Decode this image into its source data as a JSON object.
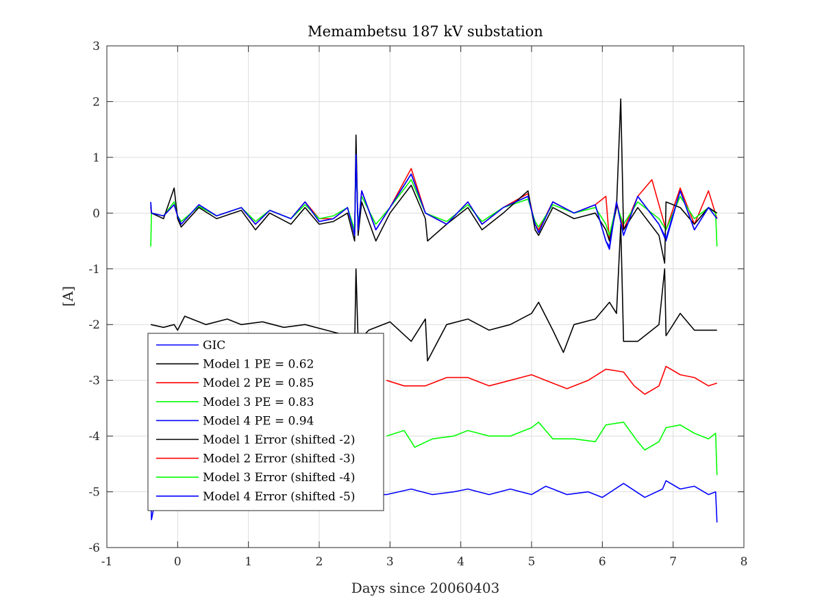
{
  "chart_data": {
    "type": "line",
    "title": "Memambetsu 187 kV substation",
    "xlabel": "Days since 20060403",
    "ylabel": "[A]",
    "xlim": [
      -1,
      8
    ],
    "ylim": [
      -6,
      3
    ],
    "xticks": [
      "-1",
      "0",
      "1",
      "2",
      "3",
      "4",
      "5",
      "6",
      "7",
      "8"
    ],
    "yticks": [
      "3",
      "2",
      "1",
      "0",
      "-1",
      "-2",
      "-3",
      "-4",
      "-5",
      "-6"
    ],
    "grid": true,
    "legend_position": "lower-left",
    "series": [
      {
        "name": "GIC",
        "color": "#0000ff",
        "x": [
          -0.38,
          -0.37,
          -0.2,
          -0.05,
          0,
          0.05,
          0.3,
          0.55,
          0.9,
          1.1,
          1.3,
          1.6,
          1.8,
          2,
          2.2,
          2.4,
          2.5,
          2.52,
          2.55,
          2.6,
          2.8,
          3,
          3.3,
          3.5,
          3.8,
          4.1,
          4.3,
          4.6,
          4.95,
          5.05,
          5.1,
          5.3,
          5.6,
          5.9,
          6.05,
          6.1,
          6.2,
          6.3,
          6.5,
          6.8,
          6.9,
          7.1,
          7.3,
          7.5,
          7.62
        ],
        "y": [
          0.2,
          0,
          -0.05,
          0.15,
          -0.05,
          -0.2,
          0.15,
          -0.05,
          0.1,
          -0.2,
          0.05,
          -0.1,
          0.2,
          -0.15,
          -0.1,
          0.1,
          -0.4,
          1.1,
          -0.3,
          0.4,
          -0.3,
          0.1,
          0.7,
          0.0,
          -0.2,
          0.2,
          -0.2,
          0.1,
          0.3,
          -0.2,
          -0.35,
          0.2,
          0.0,
          0.15,
          -0.5,
          -0.65,
          0.2,
          -0.4,
          0.3,
          -0.2,
          -0.5,
          0.4,
          -0.3,
          0.1,
          -0.1
        ]
      },
      {
        "name": "Model 1 PE = 0.62",
        "color": "#000000",
        "x": [
          -0.38,
          -0.37,
          -0.2,
          -0.05,
          0,
          0.05,
          0.3,
          0.55,
          0.9,
          1.1,
          1.3,
          1.6,
          1.8,
          2,
          2.2,
          2.4,
          2.5,
          2.52,
          2.55,
          2.6,
          2.8,
          3,
          3.3,
          3.5,
          3.53,
          3.8,
          4.1,
          4.3,
          4.6,
          4.95,
          5.05,
          5.1,
          5.3,
          5.6,
          5.9,
          6.05,
          6.1,
          6.2,
          6.26,
          6.3,
          6.5,
          6.8,
          6.88,
          6.9,
          7.1,
          7.3,
          7.5,
          7.62
        ],
        "y": [
          0.15,
          0,
          -0.1,
          0.45,
          -0.1,
          -0.25,
          0.1,
          -0.1,
          0.05,
          -0.3,
          0.0,
          -0.2,
          0.1,
          -0.2,
          -0.15,
          0.0,
          -0.5,
          1.4,
          -0.4,
          0.2,
          -0.5,
          0.0,
          0.5,
          -0.1,
          -0.5,
          -0.2,
          0.1,
          -0.3,
          0.0,
          0.4,
          -0.3,
          -0.4,
          0.1,
          -0.1,
          0.0,
          -0.3,
          -0.5,
          0.1,
          2.05,
          -0.3,
          0.1,
          -0.4,
          -0.9,
          0.2,
          0.1,
          -0.2,
          0.1,
          0.0
        ]
      },
      {
        "name": "Model 2 PE = 0.85",
        "color": "#ff0000",
        "x": [
          -0.38,
          -0.37,
          -0.2,
          -0.05,
          0,
          0.05,
          0.3,
          0.55,
          0.9,
          1.1,
          1.3,
          1.6,
          1.8,
          2,
          2.2,
          2.4,
          2.5,
          2.52,
          2.55,
          2.6,
          2.8,
          3,
          3.3,
          3.5,
          3.8,
          4.1,
          4.3,
          4.6,
          4.95,
          5.05,
          5.1,
          5.3,
          5.6,
          5.9,
          6.05,
          6.1,
          6.2,
          6.3,
          6.5,
          6.7,
          6.9,
          7.1,
          7.3,
          7.5,
          7.62
        ],
        "y": [
          0.1,
          0,
          -0.05,
          0.15,
          -0.05,
          -0.2,
          0.15,
          -0.05,
          0.1,
          -0.2,
          0.05,
          -0.1,
          0.2,
          -0.1,
          -0.1,
          0.1,
          -0.4,
          1.15,
          -0.3,
          0.4,
          -0.3,
          0.1,
          0.8,
          0.0,
          -0.2,
          0.2,
          -0.2,
          0.1,
          0.35,
          -0.2,
          -0.3,
          0.2,
          0.0,
          0.15,
          0.3,
          -0.5,
          0.2,
          -0.3,
          0.3,
          0.6,
          -0.3,
          0.45,
          -0.2,
          0.4,
          -0.1
        ]
      },
      {
        "name": "Model 3 PE = 0.83",
        "color": "#00ff00",
        "x": [
          -0.38,
          -0.37,
          -0.2,
          -0.05,
          0,
          0.05,
          0.3,
          0.55,
          0.9,
          1.1,
          1.3,
          1.6,
          1.8,
          2,
          2.2,
          2.4,
          2.5,
          2.52,
          2.55,
          2.6,
          2.8,
          3,
          3.3,
          3.5,
          3.8,
          4.1,
          4.3,
          4.6,
          4.95,
          5.05,
          5.1,
          5.3,
          5.6,
          5.9,
          6.05,
          6.1,
          6.2,
          6.3,
          6.5,
          6.8,
          6.9,
          7.1,
          7.3,
          7.5,
          7.6,
          7.62
        ],
        "y": [
          -0.6,
          0,
          -0.05,
          0.2,
          -0.05,
          -0.15,
          0.12,
          -0.05,
          0.1,
          -0.15,
          0.05,
          -0.1,
          0.15,
          -0.1,
          -0.05,
          0.1,
          -0.3,
          0.95,
          -0.2,
          0.3,
          -0.2,
          0.1,
          0.6,
          0.0,
          -0.15,
          0.15,
          -0.15,
          0.1,
          0.25,
          -0.15,
          -0.25,
          0.15,
          0.0,
          0.1,
          -0.2,
          -0.4,
          0.15,
          -0.2,
          0.2,
          -0.1,
          -0.3,
          0.3,
          -0.1,
          0.1,
          0.0,
          -0.6
        ]
      },
      {
        "name": "Model 4 PE = 0.94",
        "color": "#0000ff",
        "x": [
          -0.38,
          -0.37,
          -0.2,
          -0.05,
          0,
          0.05,
          0.3,
          0.55,
          0.9,
          1.1,
          1.3,
          1.6,
          1.8,
          2,
          2.2,
          2.4,
          2.5,
          2.52,
          2.55,
          2.6,
          2.8,
          3,
          3.3,
          3.5,
          3.8,
          4.1,
          4.3,
          4.6,
          4.95,
          5.05,
          5.1,
          5.3,
          5.6,
          5.9,
          6.05,
          6.1,
          6.2,
          6.3,
          6.5,
          6.8,
          6.9,
          7.1,
          7.3,
          7.5,
          7.62
        ],
        "y": [
          0.18,
          0,
          -0.05,
          0.15,
          -0.05,
          -0.2,
          0.15,
          -0.05,
          0.1,
          -0.2,
          0.05,
          -0.1,
          0.2,
          -0.15,
          -0.1,
          0.1,
          -0.4,
          1.05,
          -0.3,
          0.4,
          -0.3,
          0.1,
          0.7,
          0.0,
          -0.2,
          0.2,
          -0.2,
          0.1,
          0.3,
          -0.2,
          -0.35,
          0.2,
          0.0,
          0.15,
          -0.5,
          -0.6,
          0.2,
          -0.4,
          0.3,
          -0.2,
          -0.45,
          0.4,
          -0.3,
          0.1,
          -0.1
        ]
      },
      {
        "name": "Model 1 Error (shifted -2)",
        "color": "#000000",
        "x": [
          -0.38,
          -0.2,
          -0.05,
          0,
          0.1,
          0.4,
          0.7,
          0.9,
          1.2,
          1.5,
          1.8,
          2.1,
          2.4,
          2.5,
          2.52,
          2.55,
          2.7,
          3,
          3.3,
          3.5,
          3.53,
          3.8,
          4.1,
          4.4,
          4.7,
          5.0,
          5.1,
          5.3,
          5.45,
          5.6,
          5.9,
          6.1,
          6.2,
          6.26,
          6.3,
          6.5,
          6.8,
          6.88,
          6.9,
          7.1,
          7.3,
          7.5,
          7.62
        ],
        "y": [
          -2.0,
          -2.05,
          -2.0,
          -2.1,
          -1.85,
          -2.0,
          -1.9,
          -2.0,
          -1.95,
          -2.05,
          -2.0,
          -2.1,
          -2.2,
          -2.4,
          -1.0,
          -2.3,
          -2.1,
          -1.95,
          -2.3,
          -1.9,
          -2.65,
          -2.0,
          -1.9,
          -2.1,
          -2.0,
          -1.8,
          -1.6,
          -2.1,
          -2.5,
          -2.0,
          -1.9,
          -1.6,
          -1.8,
          -0.2,
          -2.3,
          -2.3,
          -2.0,
          -1.0,
          -2.2,
          -1.8,
          -2.1,
          -2.1,
          -2.1
        ]
      },
      {
        "name": "Model 2 Error (shifted -3)",
        "color": "#ff0000",
        "x": [
          2.95,
          3.2,
          3.5,
          3.8,
          4.1,
          4.4,
          4.7,
          5.0,
          5.2,
          5.5,
          5.8,
          6.05,
          6.3,
          6.45,
          6.6,
          6.8,
          6.9,
          7.1,
          7.3,
          7.5,
          7.62
        ],
        "y": [
          -3.0,
          -3.1,
          -3.1,
          -2.95,
          -2.95,
          -3.1,
          -3.0,
          -2.9,
          -3.0,
          -3.15,
          -3.0,
          -2.8,
          -2.85,
          -3.1,
          -3.25,
          -3.1,
          -2.75,
          -2.9,
          -2.95,
          -3.1,
          -3.05
        ]
      },
      {
        "name": "Model 3 Error (shifted -4)",
        "color": "#00ff00",
        "x": [
          2.95,
          3.2,
          3.35,
          3.6,
          3.9,
          4.1,
          4.4,
          4.7,
          5.0,
          5.1,
          5.3,
          5.6,
          5.9,
          6.05,
          6.3,
          6.5,
          6.6,
          6.8,
          6.9,
          7.1,
          7.3,
          7.5,
          7.6,
          7.62
        ],
        "y": [
          -4.0,
          -3.9,
          -4.2,
          -4.05,
          -4.0,
          -3.9,
          -4.0,
          -4.0,
          -3.85,
          -3.75,
          -4.05,
          -4.05,
          -4.1,
          -3.8,
          -3.75,
          -4.1,
          -4.25,
          -4.1,
          -3.85,
          -3.8,
          -3.95,
          -4.05,
          -3.95,
          -4.7
        ]
      },
      {
        "name": "Model 4 Error (shifted -5)",
        "color": "#0000ff",
        "x": [
          -0.38,
          -0.37,
          -0.3,
          2.95,
          3.3,
          3.6,
          3.9,
          4.1,
          4.4,
          4.7,
          5.0,
          5.2,
          5.5,
          5.8,
          6.0,
          6.3,
          6.6,
          6.85,
          6.9,
          7.1,
          7.3,
          7.5,
          7.6,
          7.62
        ],
        "y": [
          -5.0,
          -5.5,
          -5.05,
          -5.05,
          -4.95,
          -5.05,
          -5.0,
          -4.95,
          -5.05,
          -4.95,
          -5.05,
          -4.9,
          -5.05,
          -5.0,
          -5.1,
          -4.85,
          -5.1,
          -4.95,
          -4.8,
          -4.95,
          -4.9,
          -5.05,
          -5.0,
          -5.55
        ]
      }
    ]
  }
}
